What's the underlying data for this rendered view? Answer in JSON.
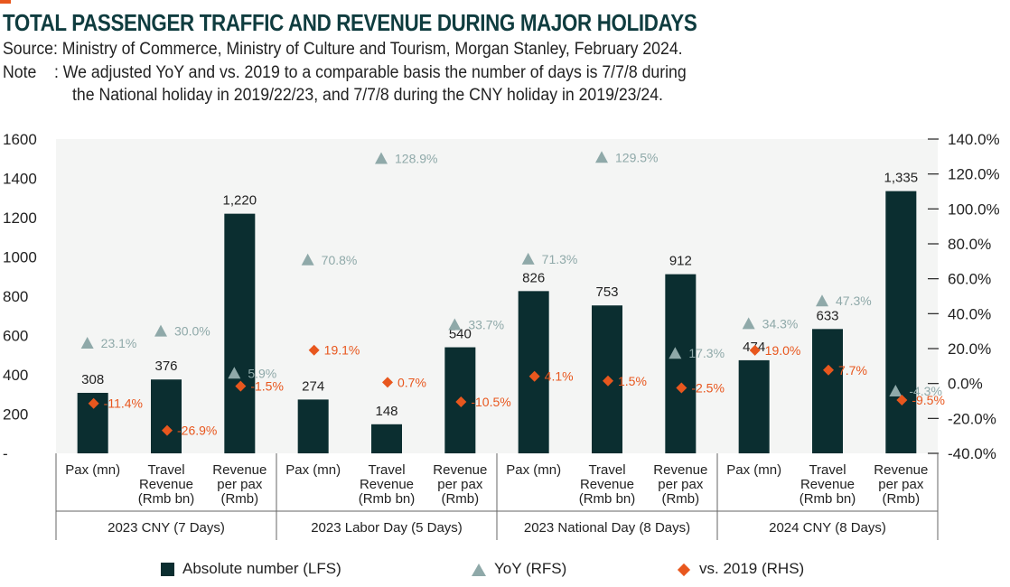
{
  "header": {
    "title": "TOTAL PASSENGER TRAFFIC AND REVENUE DURING MAJOR HOLIDAYS",
    "source": "Source: Ministry of Commerce, Ministry of Culture and Tourism, Morgan Stanley, February 2024.",
    "note_line1": "Note    : We adjusted YoY and vs. 2019 to a comparable basis the number of days is 7/7/8 during",
    "note_line2": "the National holiday in 2019/22/23, and 7/7/8 during the CNY holiday in 2019/23/24."
  },
  "colors": {
    "bar": "#0b2e30",
    "yoy": "#8fa9a9",
    "vs2019": "#e8571e",
    "plot_bg": "#f4f5f4",
    "accent": "#e8571e"
  },
  "chart_data": {
    "type": "bar",
    "groups": [
      {
        "label": "2023 CNY (7 Days)",
        "categories": [
          "Pax (mn)",
          "Travel Revenue (Rmb bn)",
          "Revenue per pax (Rmb)"
        ]
      },
      {
        "label": "2023 Labor Day (5 Days)",
        "categories": [
          "Pax (mn)",
          "Travel Revenue (Rmb bn)",
          "Revenue per pax (Rmb)"
        ]
      },
      {
        "label": "2023 National Day (8 Days)",
        "categories": [
          "Pax (mn)",
          "Travel Revenue (Rmb bn)",
          "Revenue per pax (Rmb)"
        ]
      },
      {
        "label": "2024 CNY (8 Days)",
        "categories": [
          "Pax (mn)",
          "Travel Revenue (Rmb bn)",
          "Revenue per pax (Rmb)"
        ]
      }
    ],
    "series": [
      {
        "name": "Absolute number (LFS)",
        "type": "bar",
        "axis": "left",
        "values": [
          308,
          376,
          1220,
          274,
          148,
          540,
          826,
          753,
          912,
          474,
          633,
          1335
        ],
        "labels": [
          "308",
          "376",
          "1,220",
          "274",
          "148",
          "540",
          "826",
          "753",
          "912",
          "474",
          "633",
          "1,335"
        ]
      },
      {
        "name": "YoY (RFS)",
        "type": "scatter",
        "marker": "triangle",
        "axis": "right",
        "values": [
          23.1,
          30.0,
          5.9,
          70.8,
          128.9,
          33.7,
          71.3,
          129.5,
          17.3,
          34.3,
          47.3,
          -4.3
        ],
        "labels": [
          "23.1%",
          "30.0%",
          "5.9%",
          "70.8%",
          "128.9%",
          "33.7%",
          "71.3%",
          "129.5%",
          "17.3%",
          "34.3%",
          "47.3%",
          "-4.3%"
        ]
      },
      {
        "name": "vs. 2019 (RHS)",
        "type": "scatter",
        "marker": "diamond",
        "axis": "right",
        "values": [
          -11.4,
          -26.9,
          -1.5,
          19.1,
          0.7,
          -10.5,
          4.1,
          1.5,
          -2.5,
          19.0,
          7.7,
          -9.5
        ],
        "labels": [
          "-11.4%",
          "-26.9%",
          "-1.5%",
          "19.1%",
          "0.7%",
          "-10.5%",
          "4.1%",
          "1.5%",
          "-2.5%",
          "19.0%",
          "7.7%",
          "-9.5%"
        ]
      }
    ],
    "left_axis": {
      "min": 0,
      "max": 1600,
      "ticks": [
        "-",
        "200",
        "400",
        "600",
        "800",
        "1000",
        "1200",
        "1400",
        "1600"
      ]
    },
    "right_axis": {
      "min": -40,
      "max": 140,
      "ticks": [
        "-40.0%",
        "-20.0%",
        "0.0%",
        "20.0%",
        "40.0%",
        "60.0%",
        "80.0%",
        "100.0%",
        "120.0%",
        "140.0%"
      ]
    },
    "grid": false,
    "legend_position": "bottom"
  }
}
